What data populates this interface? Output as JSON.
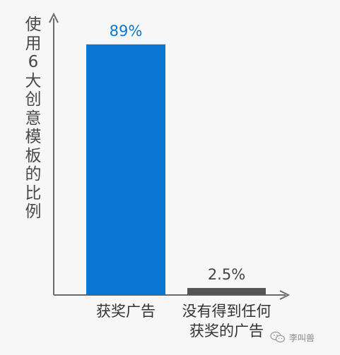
{
  "chart_data": {
    "type": "bar",
    "ylabel": "使用6大创意模板的比例",
    "xlabel": "",
    "categories": [
      [
        "获奖广告"
      ],
      [
        "没有得到任何",
        "获奖的广告"
      ]
    ],
    "values": [
      89,
      2.5
    ],
    "value_labels": [
      "89%",
      "2.5%"
    ],
    "colors": [
      "#0a78d2",
      "#555555"
    ],
    "value_label_colors": [
      "#0a78d2",
      "#444444"
    ],
    "ylim": [
      0,
      100
    ],
    "grid": false
  },
  "watermark": {
    "text": "李叫兽",
    "icon": "wechat-icon"
  }
}
